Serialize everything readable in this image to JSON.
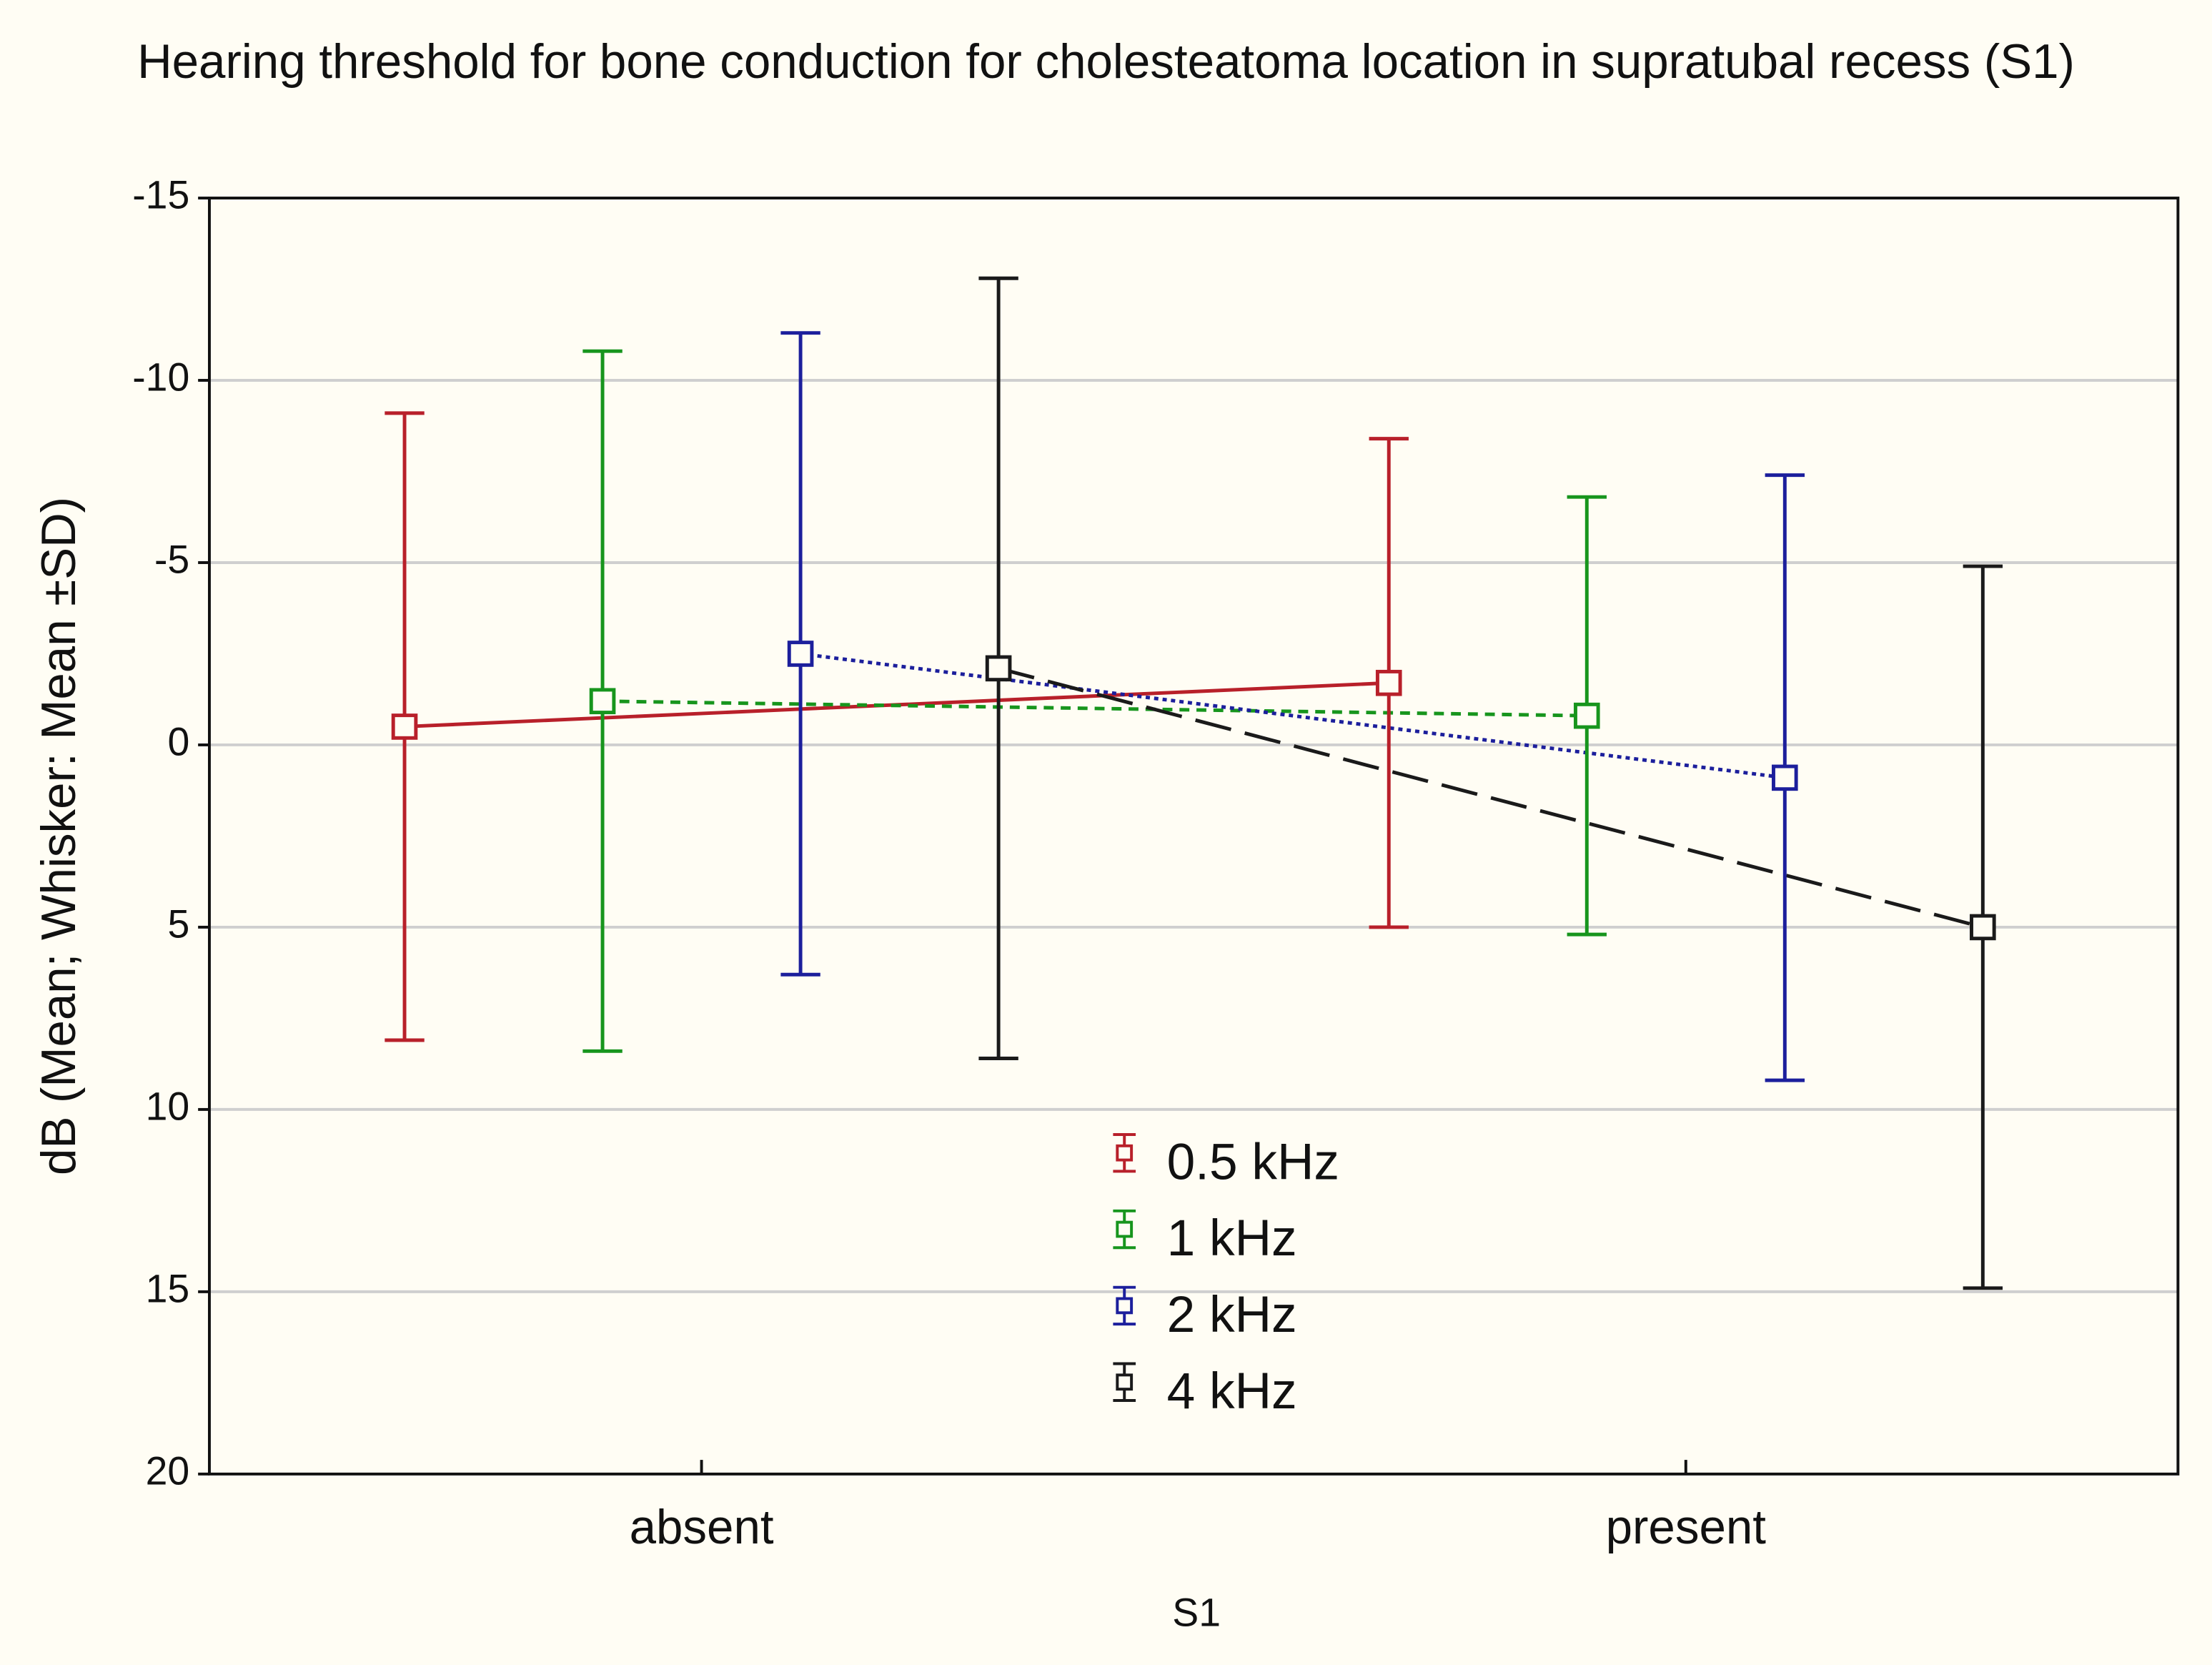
{
  "chart_data": {
    "type": "errorbar_line",
    "title": "Hearing threshold for bone conduction for cholesteatoma location in supratubal recess (S1)",
    "xlabel": "S1",
    "ylabel": "dB (Mean; Whisker: Mean ±SD)",
    "categories": [
      "absent",
      "present"
    ],
    "series": [
      {
        "name": "0.5 kHz",
        "color": "#b8202a",
        "line_style": "solid",
        "values": [
          -0.5,
          -1.7
        ],
        "errors": [
          8.6,
          6.7
        ]
      },
      {
        "name": "1 kHz",
        "color": "#17951d",
        "line_style": "dashed",
        "values": [
          -1.2,
          -0.8
        ],
        "errors": [
          9.6,
          6.0
        ]
      },
      {
        "name": "2 kHz",
        "color": "#1c1f9c",
        "line_style": "dotted",
        "values": [
          -2.5,
          0.9
        ],
        "errors": [
          8.8,
          8.3
        ]
      },
      {
        "name": "4 kHz",
        "color": "#1a1a1a",
        "line_style": "longdash",
        "values": [
          -2.1,
          5.0
        ],
        "errors": [
          10.7,
          9.9
        ]
      }
    ],
    "ylim": [
      -15,
      20
    ],
    "y_inverted": true,
    "yticks": [
      -15,
      -10,
      -5,
      0,
      5,
      10,
      15,
      20
    ],
    "grid": true,
    "legend": "bottom-center"
  }
}
